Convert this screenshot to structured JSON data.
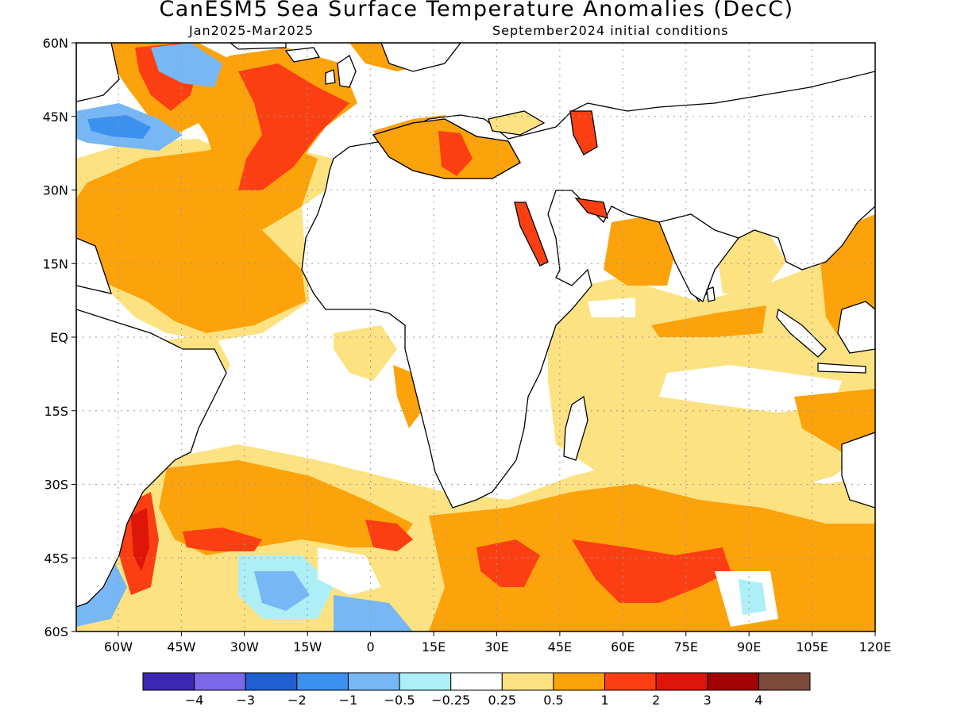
{
  "title": "CanESM5 Sea Surface Temperature Anomalies (DecC)",
  "subtitle_left": "Jan2025-Mar2025",
  "subtitle_right": "September2024 initial conditions",
  "lat_labels": [
    "60N",
    "45N",
    "30N",
    "15N",
    "EQ",
    "15S",
    "30S",
    "45S",
    "60S"
  ],
  "lon_labels": [
    "60W",
    "45W",
    "30W",
    "15W",
    "0",
    "15E",
    "30E",
    "45E",
    "60E",
    "75E",
    "90E",
    "105E",
    "120E"
  ],
  "colorbar": {
    "colors": [
      "#3b27b0",
      "#7b68e8",
      "#1f5fcf",
      "#3c91ee",
      "#78b7f5",
      "#aeeef7",
      "#ffffff",
      "#fde282",
      "#fca20b",
      "#fb3f13",
      "#de1509",
      "#a10404",
      "#7b4a3b"
    ],
    "labels": [
      "-4",
      "-3",
      "-2",
      "-1",
      "-0.5",
      "-0.25",
      "0.25",
      "0.5",
      "1",
      "2",
      "3",
      "4"
    ]
  },
  "map_extent": {
    "lon_min": -70,
    "lon_max": 120,
    "lat_min": -60,
    "lat_max": 60
  },
  "palette": {
    "land": "#ffffff",
    "warm_light": "#fde282",
    "warm": "#fca20b",
    "hot": "#fb3f13",
    "very_hot": "#de1509",
    "cool_light": "#aeeef7",
    "cool": "#78b7f5",
    "cold": "#3c91ee"
  }
}
